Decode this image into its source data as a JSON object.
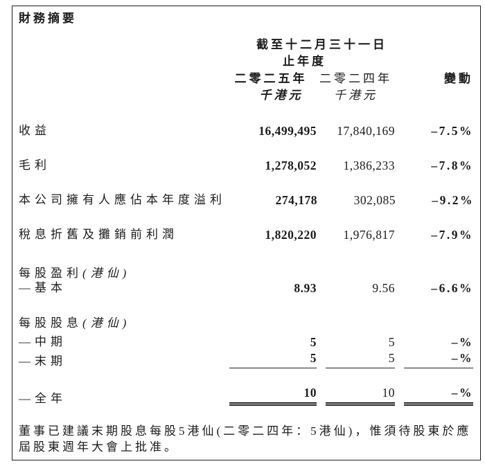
{
  "document": {
    "title": "財務摘要",
    "footnote": "董事已建議末期股息每股5港仙(二零二四年：5港仙)，惟須待股東於應屆股東週年大會上批准。"
  },
  "table": {
    "period_header_line1": "截至十二月三十一日",
    "period_header_line2": "止年度",
    "columns": {
      "y2025_label": "二零二五年",
      "y2024_label": "二零二四年",
      "change_label": "變動",
      "y2025_unit": "千港元",
      "y2024_unit": "千港元"
    },
    "rows": [
      {
        "label": "收益",
        "y2025": "16,499,495",
        "y2024": "17,840,169",
        "change": "–7.5%"
      },
      {
        "label": "毛利",
        "y2025": "1,278,052",
        "y2024": "1,386,233",
        "change": "–7.8%"
      },
      {
        "label": "本公司擁有人應佔本年度溢利",
        "y2025": "274,178",
        "y2024": "302,085",
        "change": "–9.2%"
      },
      {
        "label": "稅息折舊及攤銷前利潤",
        "y2025": "1,820,220",
        "y2024": "1,976,817",
        "change": "–7.9%"
      },
      {
        "label": "每股盈利",
        "label_italic": "(港仙)",
        "section": true
      },
      {
        "label": "—基本",
        "y2025": "8.93",
        "y2024": "9.56",
        "change": "–6.6%"
      },
      {
        "label": "每股股息",
        "label_italic": "(港仙)",
        "section": true
      },
      {
        "label": "—中期",
        "y2025": "5",
        "y2024": "5",
        "change": "–%"
      },
      {
        "label": "—末期",
        "y2025": "5",
        "y2024": "5",
        "change": "–%"
      },
      {
        "label": "—全年",
        "y2025": "10",
        "y2024": "10",
        "change": "–%"
      }
    ]
  }
}
